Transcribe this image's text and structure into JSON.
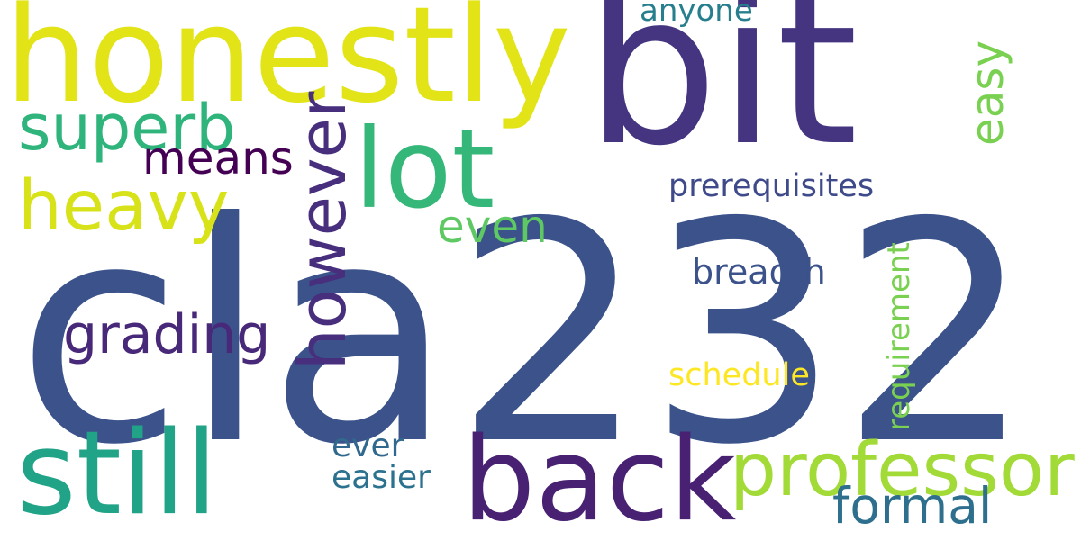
{
  "words": [
    {
      "text": "cla232",
      "color": "#3b528b",
      "orientation": "horizontal"
    },
    {
      "text": "bit",
      "color": "#453581",
      "orientation": "horizontal"
    },
    {
      "text": "honestly",
      "color": "#e2e418",
      "orientation": "horizontal"
    },
    {
      "text": "back",
      "color": "#482173",
      "orientation": "horizontal"
    },
    {
      "text": "still",
      "color": "#20a386",
      "orientation": "horizontal"
    },
    {
      "text": "lot",
      "color": "#35b779",
      "orientation": "horizontal"
    },
    {
      "text": "professor",
      "color": "#a2da37",
      "orientation": "horizontal"
    },
    {
      "text": "however",
      "color": "#472f7d",
      "orientation": "vertical"
    },
    {
      "text": "heavy",
      "color": "#d8e219",
      "orientation": "horizontal"
    },
    {
      "text": "superb",
      "color": "#2fb47c",
      "orientation": "horizontal"
    },
    {
      "text": "grading",
      "color": "#482878",
      "orientation": "horizontal"
    },
    {
      "text": "formal",
      "color": "#2e6f8e",
      "orientation": "horizontal"
    },
    {
      "text": "means",
      "color": "#440154",
      "orientation": "horizontal"
    },
    {
      "text": "even",
      "color": "#5ec962",
      "orientation": "horizontal"
    },
    {
      "text": "easy",
      "color": "#7ad151",
      "orientation": "vertical"
    },
    {
      "text": "prerequisites",
      "color": "#3e4a89",
      "orientation": "horizontal"
    },
    {
      "text": "breadth",
      "color": "#3b528b",
      "orientation": "horizontal"
    },
    {
      "text": "requirement",
      "color": "#7ad151",
      "orientation": "vertical"
    },
    {
      "text": "schedule",
      "color": "#fde725",
      "orientation": "horizontal"
    },
    {
      "text": "anyone",
      "color": "#277f8e",
      "orientation": "horizontal"
    },
    {
      "text": "ever",
      "color": "#31688e",
      "orientation": "horizontal"
    },
    {
      "text": "easier",
      "color": "#2c728e",
      "orientation": "horizontal"
    }
  ]
}
